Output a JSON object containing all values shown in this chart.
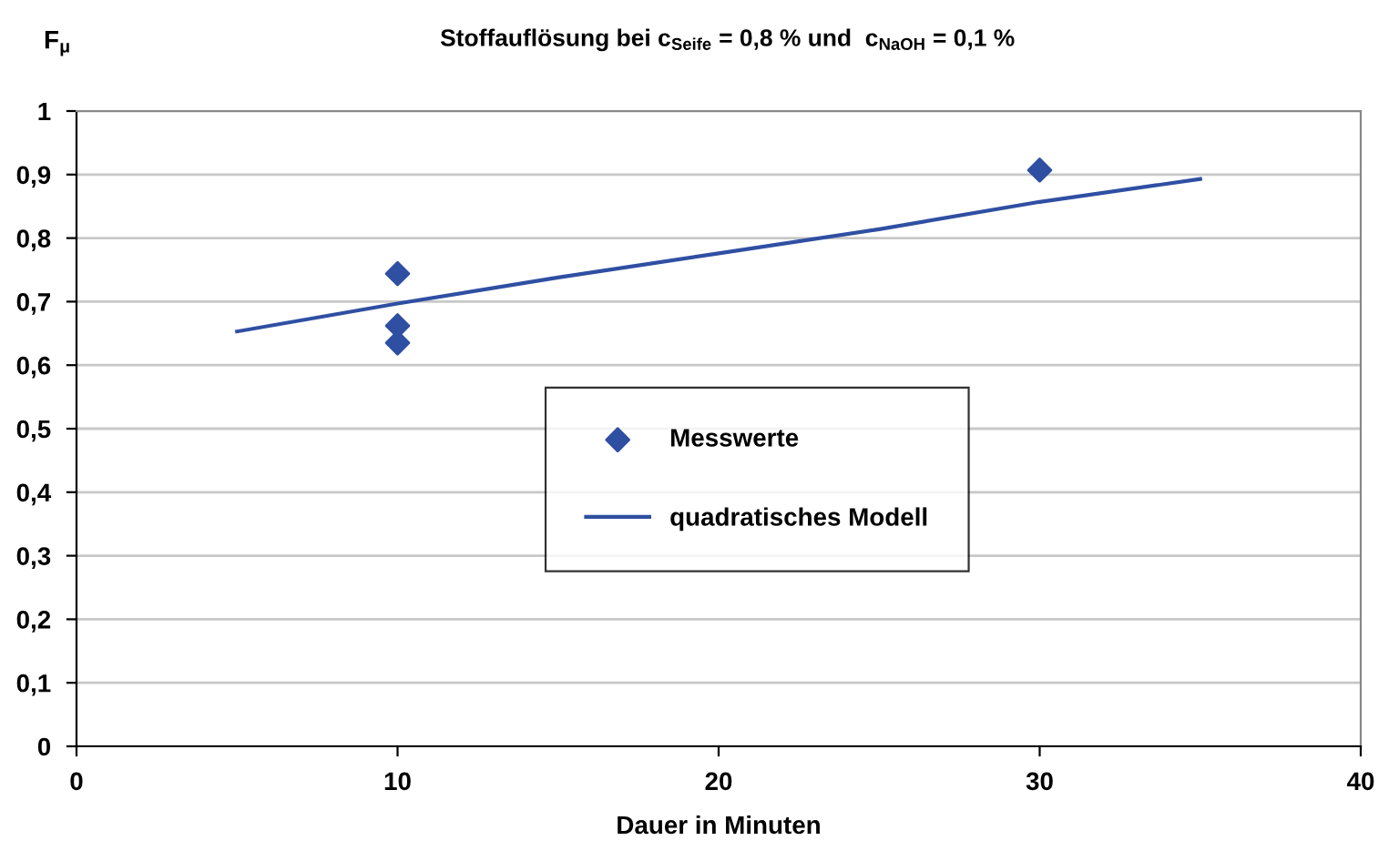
{
  "chart_data": {
    "type": "scatter",
    "title": "Stoffauflösung bei c$_{Seife}$ = 0,8 % und  c$_{NaOH}$ = 0,1 %",
    "ylabel": "F$_{μ}$",
    "xlabel": "Dauer in Minuten",
    "series": [
      {
        "name": "Messwerte",
        "marker": "diamond",
        "color": "#2f4fa2",
        "x": [
          10,
          10,
          10,
          30
        ],
        "values": [
          0.744,
          0.662,
          0.635,
          0.907
        ]
      },
      {
        "name": "quadratisches Modell",
        "type": "line",
        "marker": "none",
        "color": "#2f4fa2",
        "x": [
          5,
          10,
          15,
          20,
          25,
          30,
          35
        ],
        "values": [
          0.653,
          0.697,
          0.738,
          0.776,
          0.814,
          0.857,
          0.893
        ]
      }
    ],
    "xlim": [
      0,
      40
    ],
    "xticks": [
      0,
      10,
      20,
      30,
      40
    ],
    "ylim": [
      0,
      1
    ],
    "yticks": [
      0,
      {
        "value": 0.1,
        "label": "0,1"
      },
      {
        "value": 0.2,
        "label": "0,2"
      },
      {
        "value": 0.3,
        "label": "0,3"
      },
      {
        "value": 0.4,
        "label": "0,4"
      },
      {
        "value": 0.5,
        "label": "0,5"
      },
      {
        "value": 0.6,
        "label": "0,6"
      },
      {
        "value": 0.7,
        "label": "0,7"
      },
      {
        "value": 0.8,
        "label": "0,8"
      },
      {
        "value": 0.9,
        "label": "0,9"
      },
      1
    ],
    "grid": "y",
    "legend": "center"
  }
}
